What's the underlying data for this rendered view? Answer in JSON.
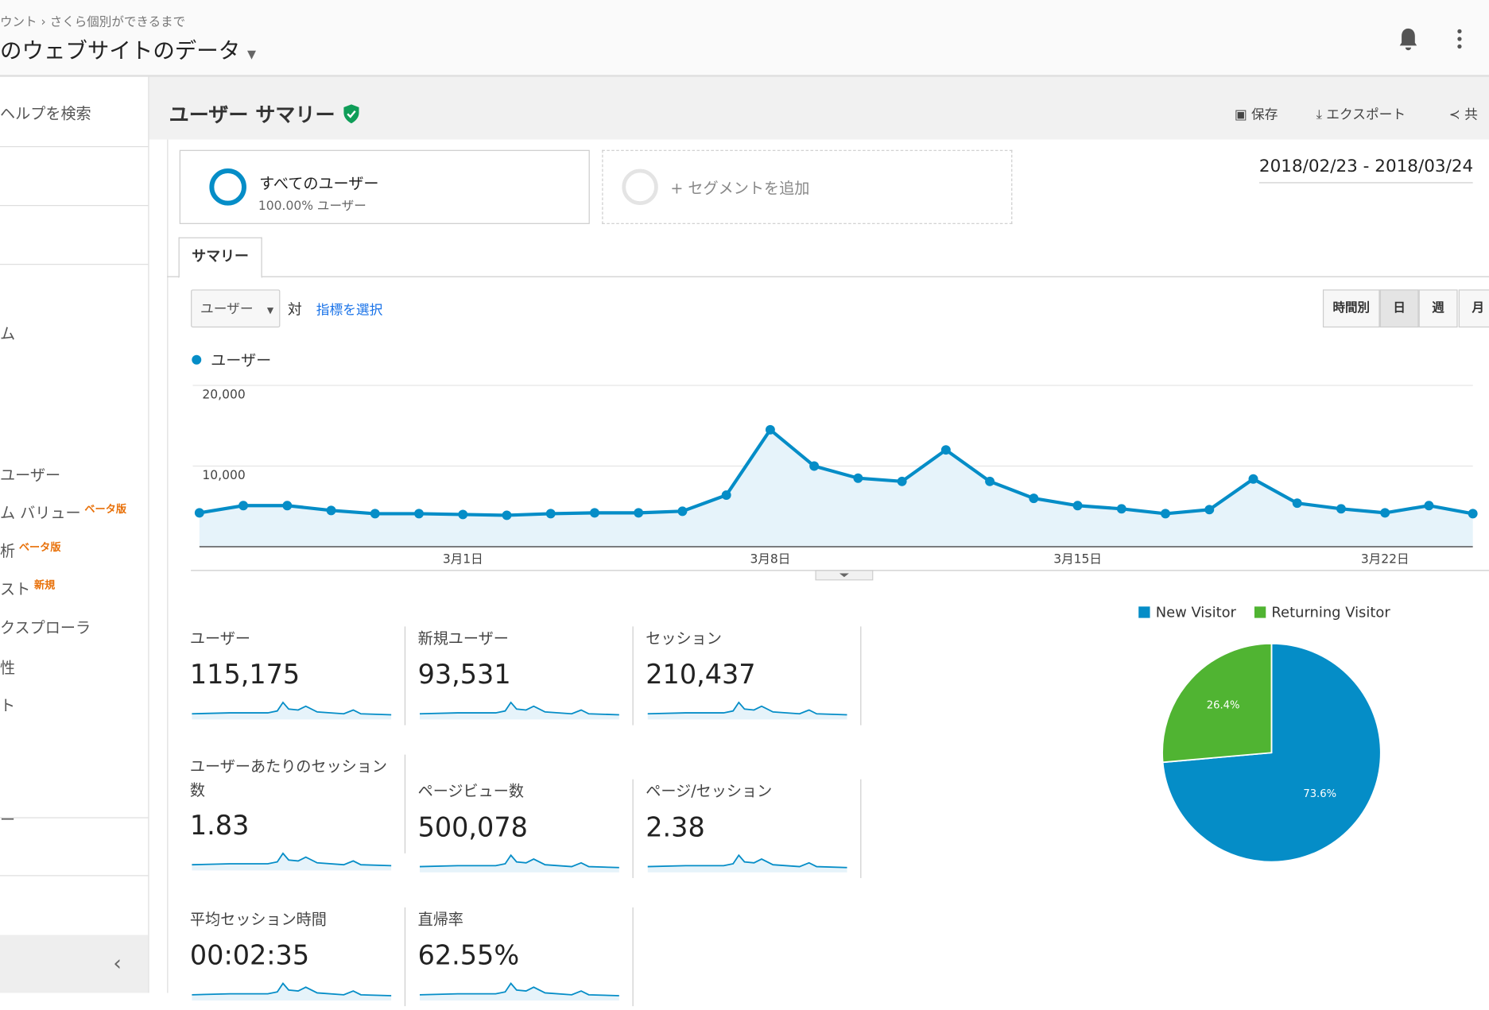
{
  "header": {
    "breadcrumb": [
      "ウント",
      "さくら個別ができるまで"
    ],
    "title": "のウェブサイトのデータ"
  },
  "sidebar": {
    "search": "ヘルプを検索",
    "items": [
      {
        "label": "ム"
      },
      {
        "label": "ユーザー"
      },
      {
        "label": "ム バリュー",
        "badge": "ベータ版"
      },
      {
        "label": "析",
        "badge": "ベータ版"
      },
      {
        "label": "スト",
        "badge": "新規"
      },
      {
        "label": "クスプローラ"
      },
      {
        "label": "性"
      },
      {
        "label": "ト"
      },
      {
        "label": "ー"
      }
    ]
  },
  "page": {
    "title": "ユーザー サマリー",
    "actions": [
      "保存",
      "エクスポート",
      "共"
    ],
    "segment": {
      "name": "すべてのユーザー",
      "share": "100.00% ユーザー"
    },
    "add_segment": "+ セグメントを追加",
    "date_range": "2018/02/23 - 2018/03/24",
    "tab": "サマリー",
    "metric_select": "ユーザー",
    "versus": "対",
    "choose_metric": "指標を選択",
    "granularity": [
      "時間別",
      "日",
      "週",
      "月"
    ]
  },
  "metrics": [
    {
      "label": "ユーザー",
      "value": "115,175"
    },
    {
      "label": "新規ユーザー",
      "value": "93,531"
    },
    {
      "label": "セッション",
      "value": "210,437"
    },
    {
      "label": "ユーザーあたりのセッション数",
      "value": "1.83"
    },
    {
      "label": "ページビュー数",
      "value": "500,078"
    },
    {
      "label": "ページ/セッション",
      "value": "2.38"
    },
    {
      "label": "平均セッション時間",
      "value": "00:02:35"
    },
    {
      "label": "直帰率",
      "value": "62.55%"
    }
  ],
  "chart_data": [
    {
      "type": "line",
      "categories": [
        null,
        null,
        null,
        null,
        null,
        null,
        "3月1日",
        null,
        null,
        null,
        null,
        null,
        null,
        "3月8日",
        null,
        null,
        null,
        null,
        null,
        null,
        "3月15日",
        null,
        null,
        null,
        null,
        null,
        null,
        "3月22日",
        null,
        null
      ],
      "series": [
        {
          "name": "ユーザー",
          "color": "#058dc7",
          "values": [
            4200,
            5100,
            5100,
            4500,
            4100,
            4100,
            4000,
            3900,
            4100,
            4200,
            4200,
            4400,
            6400,
            14500,
            10000,
            8500,
            8100,
            12000,
            8100,
            6000,
            5100,
            4700,
            4100,
            4600,
            8400,
            5400,
            4700,
            4200,
            5100,
            4100
          ]
        }
      ],
      "ylim": [
        0,
        20000
      ],
      "yticks": [
        {
          "value": 10000,
          "label": "10,000"
        },
        {
          "value": 20000,
          "label": "20,000"
        }
      ],
      "grid": true
    },
    {
      "type": "pie",
      "categories": [
        "New Visitor",
        "Returning Visitor"
      ],
      "values": [
        73.6,
        26.4
      ],
      "value_labels": [
        "73.6%",
        "26.4%"
      ],
      "colors": [
        "#058dc7",
        "#50b432"
      ]
    }
  ]
}
